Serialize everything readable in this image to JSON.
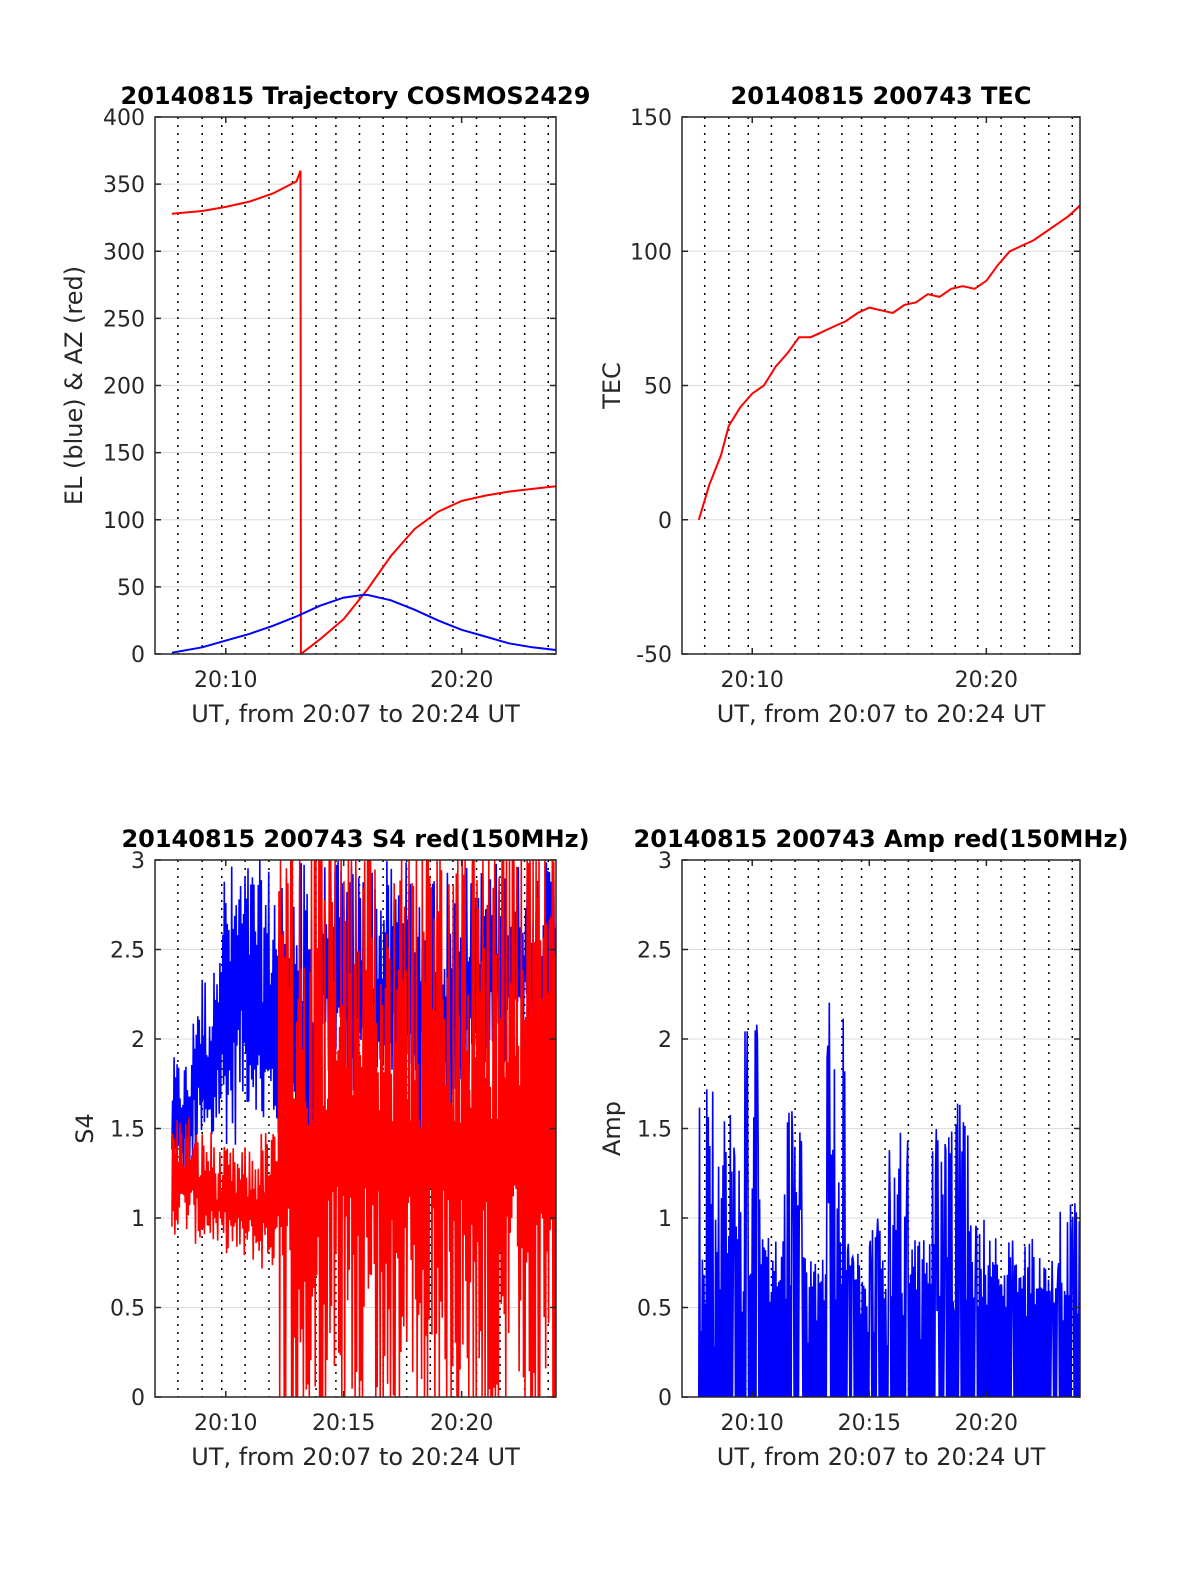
{
  "colors": {
    "red": "#ff0000",
    "blue": "#0000ff",
    "axis": "#262626",
    "grid": "#dcdcdc"
  },
  "chart_data": [
    {
      "type": "line",
      "title": "20140815 Trajectory COSMOS2429",
      "xlabel": "UT, from 20:07 to 20:24 UT",
      "ylabel": "EL (blue) & AZ (red)",
      "xlim": [
        "20:07",
        "20:24"
      ],
      "ylim": [
        0,
        400
      ],
      "yticks": [
        "0",
        "50",
        "100",
        "150",
        "200",
        "250",
        "300",
        "350",
        "400"
      ],
      "xticks": [
        "20:10",
        "20:20"
      ],
      "grid": true,
      "series": [
        {
          "name": "AZ",
          "color": "red",
          "x": [
            "20:07:43",
            "20:09",
            "20:10",
            "20:11",
            "20:12",
            "20:13",
            "20:13:10",
            "20:13:11",
            "20:14",
            "20:15",
            "20:16",
            "20:17",
            "20:18",
            "20:19",
            "20:20",
            "20:21",
            "20:22",
            "20:23",
            "20:24"
          ],
          "y": [
            328,
            330,
            333,
            337,
            343,
            352,
            360,
            0,
            11,
            26,
            48,
            73,
            93,
            106,
            114,
            118,
            121,
            123,
            125
          ]
        },
        {
          "name": "EL",
          "color": "blue",
          "x": [
            "20:07:43",
            "20:09",
            "20:10",
            "20:11",
            "20:12",
            "20:13",
            "20:14",
            "20:15",
            "20:15:50",
            "20:16",
            "20:17",
            "20:18",
            "20:19",
            "20:20",
            "20:21",
            "20:22",
            "20:23",
            "20:24"
          ],
          "y": [
            1,
            5,
            10,
            15,
            21,
            28,
            36,
            42,
            44,
            44,
            40,
            33,
            25,
            18,
            13,
            8,
            5,
            3
          ]
        }
      ]
    },
    {
      "type": "line",
      "title": "20140815 200743 TEC",
      "xlabel": "UT, from 20:07 to 20:24 UT",
      "ylabel": "TEC",
      "xlim": [
        "20:07",
        "20:24"
      ],
      "ylim": [
        -50,
        150
      ],
      "yticks": [
        "-50",
        "0",
        "50",
        "100",
        "150"
      ],
      "xticks": [
        "20:10",
        "20:20"
      ],
      "grid": true,
      "series": [
        {
          "color": "red",
          "x": [
            "20:07:43",
            "20:08:10",
            "20:08:40",
            "20:09",
            "20:09:30",
            "20:10",
            "20:10:30",
            "20:11",
            "20:11:30",
            "20:12",
            "20:12:30",
            "20:13",
            "20:13:30",
            "20:14",
            "20:14:30",
            "20:15",
            "20:15:30",
            "20:16",
            "20:16:30",
            "20:17",
            "20:17:30",
            "20:18",
            "20:18:30",
            "20:19",
            "20:19:30",
            "20:20",
            "20:20:30",
            "20:21",
            "20:21:30",
            "20:22",
            "20:22:30",
            "20:23",
            "20:23:30",
            "20:24"
          ],
          "y": [
            0,
            13,
            24,
            35,
            42,
            47,
            50,
            57,
            62,
            68,
            68,
            70,
            72,
            74,
            77,
            79,
            78,
            77,
            80,
            81,
            84,
            83,
            86,
            87,
            86,
            89,
            95,
            100,
            102,
            104,
            107,
            110,
            113,
            117
          ]
        }
      ]
    },
    {
      "type": "line",
      "title": "20140815 200743 S4 red(150MHz)",
      "xlabel": "UT, from 20:07 to 20:24 UT",
      "ylabel": "S4",
      "xlim": [
        "20:07",
        "20:24"
      ],
      "ylim": [
        0,
        3
      ],
      "yticks": [
        "0",
        "0.5",
        "1",
        "1.5",
        "2",
        "2.5",
        "3"
      ],
      "xticks": [
        "20:10",
        "20:15",
        "20:20"
      ],
      "grid": true,
      "series": [
        {
          "color": "red",
          "x_start": "20:07:43",
          "x_end": "20:24",
          "envelope_low": [
            0.9,
            0.85,
            0.8,
            0.75,
            0.7,
            0.0,
            0.0,
            0.0,
            0.0,
            0.0,
            0.0,
            0.0,
            0.0,
            0.0,
            0.0,
            0.0,
            0.0,
            0.0
          ],
          "envelope_high": [
            1.6,
            1.5,
            1.4,
            1.4,
            1.5,
            3.0,
            3.0,
            3.0,
            3.0,
            3.0,
            3.0,
            3.0,
            3.0,
            3.0,
            3.0,
            3.0,
            3.0,
            3.0
          ]
        },
        {
          "color": "blue",
          "x_start": "20:07:43",
          "x_end": "20:24",
          "envelope_low": [
            1.2,
            1.3,
            1.4,
            1.6,
            1.4,
            1.2,
            0.9,
            1.8,
            1.6,
            1.5,
            1.6,
            1.4,
            1.3,
            1.6,
            1.8,
            1.8,
            1.9,
            1.9
          ],
          "envelope_high": [
            1.9,
            2.4,
            3.0,
            3.0,
            3.0,
            3.0,
            3.0,
            3.0,
            3.0,
            3.0,
            3.0,
            3.0,
            3.0,
            3.0,
            3.0,
            3.0,
            3.0,
            3.0
          ]
        }
      ]
    },
    {
      "type": "line",
      "title": "20140815 200743 Amp red(150MHz)",
      "xlabel": "UT, from 20:07 to 20:24 UT",
      "ylabel": "Amp",
      "xlim": [
        "20:07",
        "20:24"
      ],
      "ylim": [
        0,
        3
      ],
      "yticks": [
        "0",
        "0.5",
        "1",
        "1.5",
        "2",
        "2.5",
        "3"
      ],
      "xticks": [
        "20:10",
        "20:15",
        "20:20"
      ],
      "grid": true,
      "series": [
        {
          "color": "blue",
          "x_start": "20:07:43",
          "x_end": "20:24",
          "envelope_high": [
            2.0,
            1.6,
            2.1,
            0.9,
            1.6,
            0.8,
            2.3,
            0.9,
            1.0,
            1.5,
            0.9,
            1.5,
            1.7,
            1.0,
            0.9,
            0.9,
            0.8,
            1.1
          ]
        }
      ]
    }
  ]
}
